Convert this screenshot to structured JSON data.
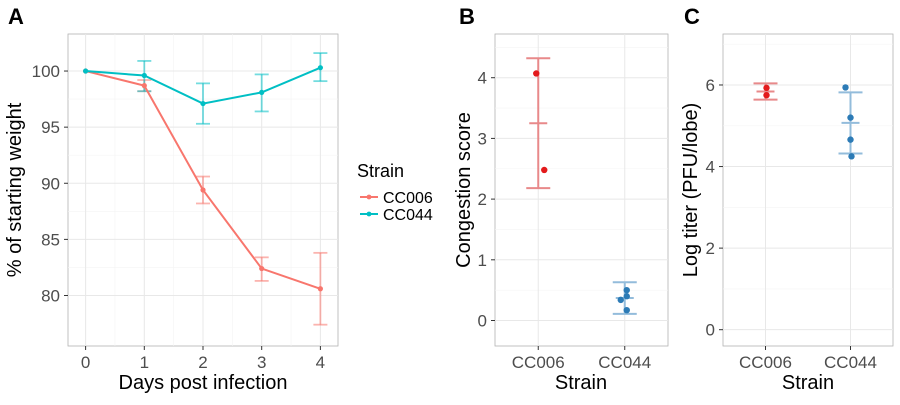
{
  "chart_data": [
    {
      "panel": "A",
      "type": "line",
      "xlabel": "Days post infection",
      "ylabel": "% of starting weight",
      "x": [
        0,
        1,
        2,
        3,
        4
      ],
      "xticks": [
        "0",
        "1",
        "2",
        "3",
        "4"
      ],
      "yticks": [
        "80",
        "85",
        "90",
        "95",
        "100"
      ],
      "xlim": [
        -0.3,
        4.3
      ],
      "ylim": [
        75.5,
        103.3
      ],
      "grid": true,
      "legend": {
        "title": "Strain",
        "position": "right"
      },
      "series": [
        {
          "name": "CC006",
          "color": "#F8766D",
          "values": [
            100,
            98.7,
            89.4,
            82.4,
            80.6
          ],
          "err_low": [
            100,
            98.2,
            88.2,
            81.3,
            77.4
          ],
          "err_high": [
            100,
            99.2,
            90.6,
            83.4,
            83.8
          ]
        },
        {
          "name": "CC044",
          "color": "#00BFC4",
          "values": [
            100,
            99.6,
            97.1,
            98.1,
            100.3
          ],
          "err_low": [
            100,
            98.2,
            95.3,
            96.4,
            99.1
          ],
          "err_high": [
            100,
            100.9,
            98.9,
            99.7,
            101.6
          ]
        }
      ]
    },
    {
      "panel": "B",
      "type": "scatter",
      "xlabel": "Strain",
      "ylabel": "Congestion score",
      "categories": [
        "CC006",
        "CC044"
      ],
      "yticks": [
        "0",
        "1",
        "2",
        "3",
        "4"
      ],
      "ylim": [
        -0.42,
        4.72
      ],
      "grid": true,
      "groups": [
        {
          "category": "CC006",
          "color": "#E31A1C",
          "bar_color": "#E8898A",
          "points": [
            4.07,
            2.48
          ],
          "mean": 3.25,
          "err_low": 2.18,
          "err_high": 4.32
        },
        {
          "category": "CC044",
          "color": "#2C7BB6",
          "bar_color": "#93BCDB",
          "points": [
            0.34,
            0.4,
            0.5,
            0.17
          ],
          "mean": 0.37,
          "err_low": 0.11,
          "err_high": 0.63
        }
      ]
    },
    {
      "panel": "C",
      "type": "scatter",
      "xlabel": "Strain",
      "ylabel": "Log titer (PFU/lobe)",
      "categories": [
        "CC006",
        "CC044"
      ],
      "yticks": [
        "0",
        "2",
        "4",
        "6"
      ],
      "ylim": [
        -0.4,
        7.25
      ],
      "grid": true,
      "groups": [
        {
          "category": "CC006",
          "color": "#E31A1C",
          "bar_color": "#E8898A",
          "points": [
            5.93,
            5.75
          ],
          "mean": 5.84,
          "err_low": 5.64,
          "err_high": 6.04
        },
        {
          "category": "CC044",
          "color": "#2C7BB6",
          "bar_color": "#93BCDB",
          "points": [
            5.94,
            5.2,
            4.66,
            4.25
          ],
          "mean": 5.07,
          "err_low": 4.32,
          "err_high": 5.82
        }
      ]
    }
  ]
}
